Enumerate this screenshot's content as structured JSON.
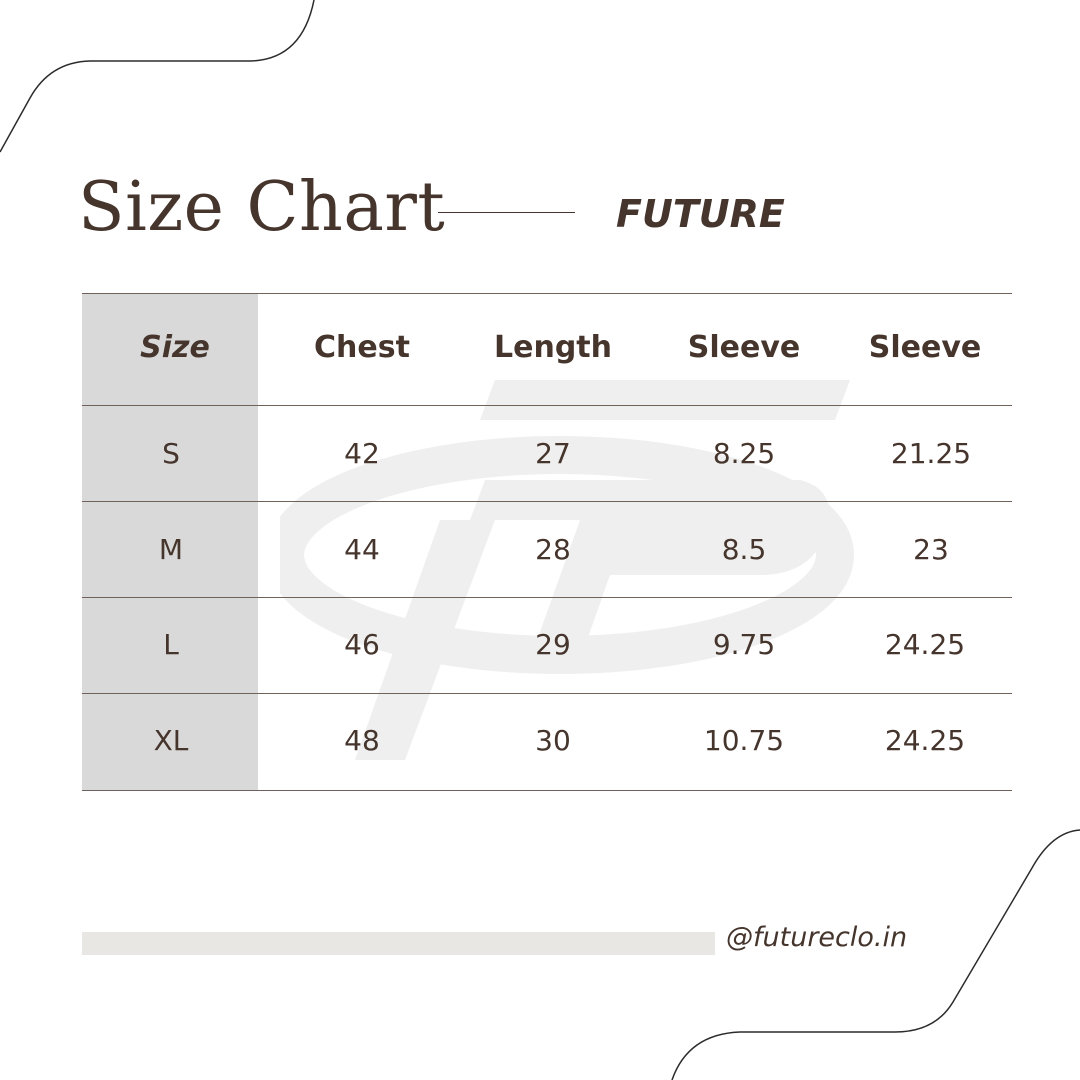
{
  "header": {
    "title": "Size Chart",
    "brand": "FUTURE"
  },
  "table": {
    "headers": [
      "Size",
      "Chest",
      "Length",
      "Sleeve",
      "Sleeve"
    ],
    "rows": [
      [
        "S",
        "42",
        "27",
        "8.25",
        "21.25"
      ],
      [
        "M",
        "44",
        "28",
        "8.5",
        "23"
      ],
      [
        "L",
        "46",
        "29",
        "9.75",
        "24.25"
      ],
      [
        "XL",
        "48",
        "30",
        "10.75",
        "24.25"
      ]
    ]
  },
  "footer": {
    "handle": "@futureclo.in"
  },
  "colors": {
    "text": "#45352c",
    "size_column": "#d9d9d9",
    "handle_bar": "#e9e7e4",
    "watermark": "#f0f0f0"
  },
  "icons": {
    "watermark": "fp-logo-watermark-icon"
  }
}
